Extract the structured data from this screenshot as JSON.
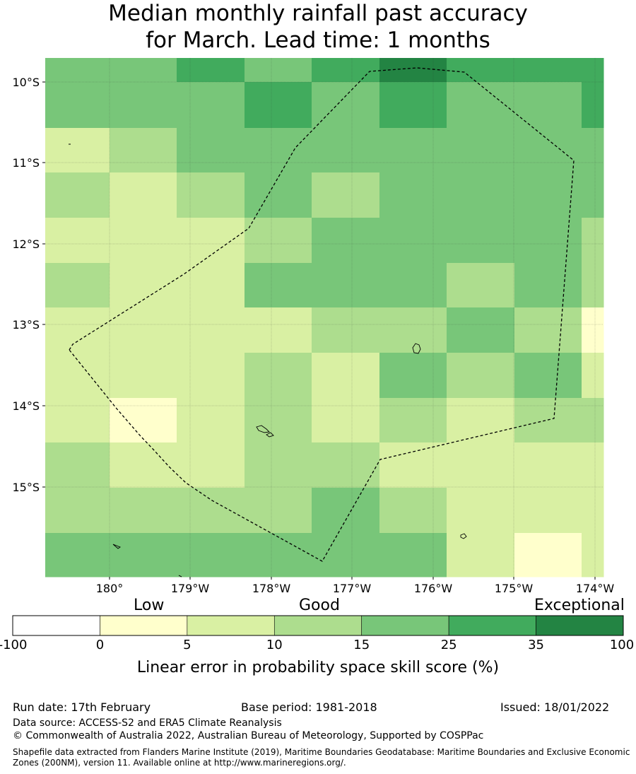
{
  "title": {
    "line1": "Median monthly rainfall past accuracy",
    "line2": "for March. Lead time: 1 months"
  },
  "map": {
    "lat_labels": [
      "10°S",
      "11°S",
      "12°S",
      "13°S",
      "14°S",
      "15°S"
    ],
    "lon_labels": [
      "180°",
      "179°W",
      "178°W",
      "177°W",
      "176°W",
      "175°W",
      "174°W"
    ],
    "grid_values": [
      [
        15,
        15,
        25,
        15,
        25,
        35,
        25,
        25,
        25
      ],
      [
        15,
        15,
        15,
        25,
        15,
        25,
        15,
        15,
        25
      ],
      [
        5,
        10,
        15,
        15,
        15,
        15,
        15,
        15,
        15
      ],
      [
        10,
        5,
        10,
        15,
        10,
        15,
        15,
        15,
        15
      ],
      [
        5,
        5,
        5,
        10,
        15,
        15,
        15,
        15,
        10
      ],
      [
        10,
        5,
        5,
        15,
        15,
        15,
        10,
        15,
        10
      ],
      [
        5,
        5,
        5,
        5,
        10,
        10,
        15,
        10,
        0
      ],
      [
        5,
        5,
        5,
        10,
        5,
        15,
        10,
        15,
        5
      ],
      [
        5,
        0,
        5,
        10,
        5,
        10,
        5,
        10,
        10
      ],
      [
        10,
        5,
        5,
        10,
        10,
        5,
        5,
        5,
        5
      ],
      [
        10,
        10,
        10,
        10,
        15,
        10,
        5,
        5,
        5
      ],
      [
        15,
        15,
        15,
        15,
        15,
        15,
        5,
        0,
        5
      ]
    ],
    "colors": {
      "c0": "#ffffff",
      "c5": "#ffffcc",
      "c10": "#d9f0a3",
      "c15": "#addd8e",
      "c25": "#78c679",
      "c35": "#41ab5d",
      "c100": "#238443"
    }
  },
  "legend": {
    "low": "Low",
    "good": "Good",
    "exceptional": "Exceptional",
    "ticks": [
      "-100",
      "0",
      "5",
      "10",
      "15",
      "25",
      "35",
      "100"
    ],
    "bins": [
      "#ffffff",
      "#ffffcc",
      "#d9f0a3",
      "#addd8e",
      "#78c679",
      "#41ab5d",
      "#238443"
    ],
    "axis_title": "Linear error in probability space skill score (%)"
  },
  "footer": {
    "run_date": "Run date: 17th February",
    "base_period": "Base period: 1981-2018",
    "issued": "Issued: 18/01/2022",
    "data_source": "Data source: ACCESS-S2 and ERA5 Climate Reanalysis",
    "copyright": "© Commonwealth of Australia 2022, Australian Bureau of Meteorology, Supported by COSPPac",
    "shapefile": "Shapefile data extracted from Flanders Marine Institute (2019), Maritime Boundaries Geodatabase: Maritime Boundaries and Exclusive Economic Zones (200NM), version 11. Available online at http://www.marineregions.org/."
  }
}
